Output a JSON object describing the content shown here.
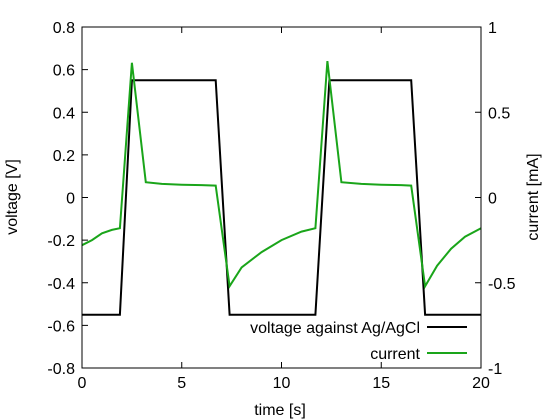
{
  "chart_data": {
    "type": "line",
    "title": "",
    "xlabel": "time [s]",
    "ylabel_left": "voltage [V]",
    "ylabel_right": "current [mA]",
    "xlim": [
      0,
      20
    ],
    "ylim_left": [
      -0.8,
      0.8
    ],
    "ylim_right": [
      -1,
      1
    ],
    "x_ticks": [
      0,
      5,
      10,
      15,
      20
    ],
    "x_tick_labels": [
      "0",
      "5",
      "10",
      "15",
      "20"
    ],
    "y_left_ticks": [
      -0.8,
      -0.6,
      -0.4,
      -0.2,
      0,
      0.2,
      0.4,
      0.6,
      0.8
    ],
    "y_left_tick_labels": [
      "-0.8",
      "-0.6",
      "-0.4",
      "-0.2",
      "0",
      "0.2",
      "0.4",
      "0.6",
      "0.8"
    ],
    "y_right_ticks": [
      -1,
      -0.5,
      0,
      0.5,
      1
    ],
    "y_right_tick_labels": [
      "-1",
      "-0.5",
      "0",
      "0.5",
      "1"
    ],
    "grid": false,
    "legend_position": "bottom-right",
    "series": [
      {
        "name": "voltage against Ag/AgCl",
        "axis": "left",
        "color": "#000000",
        "x": [
          0,
          1.9,
          2.5,
          6.7,
          7.4,
          11.7,
          12.4,
          16.5,
          17.2,
          20
        ],
        "y": [
          -0.55,
          -0.55,
          0.55,
          0.55,
          -0.55,
          -0.55,
          0.55,
          0.55,
          -0.55,
          -0.55
        ]
      },
      {
        "name": "current",
        "axis": "right",
        "color": "#1aa51a",
        "x": [
          0,
          0.5,
          1.0,
          1.5,
          1.9,
          2.5,
          3.2,
          4.0,
          5.0,
          6.0,
          6.7,
          7.4,
          8.0,
          9.0,
          10.0,
          11.0,
          11.7,
          12.3,
          13.0,
          14.0,
          15.0,
          16.0,
          16.5,
          17.2,
          17.8,
          18.5,
          19.2,
          20.0
        ],
        "y": [
          -0.28,
          -0.25,
          -0.21,
          -0.19,
          -0.18,
          0.79,
          0.09,
          0.08,
          0.075,
          0.073,
          0.07,
          -0.52,
          -0.41,
          -0.32,
          -0.25,
          -0.2,
          -0.18,
          0.8,
          0.09,
          0.08,
          0.075,
          0.073,
          0.07,
          -0.52,
          -0.4,
          -0.3,
          -0.23,
          -0.18
        ]
      }
    ]
  }
}
